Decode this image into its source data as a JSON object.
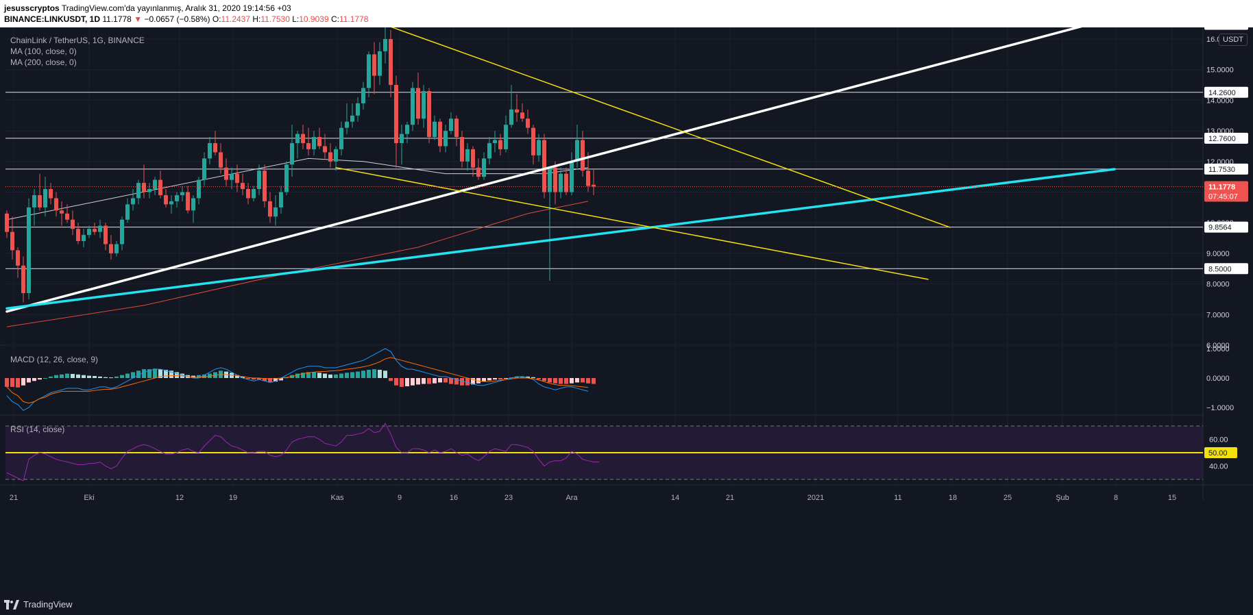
{
  "header": {
    "user": "jesusscryptos",
    "published": "TradingView.com'da yayınlanmış, Aralık 31, 2020 19:14:56 +03",
    "symbol": "BINANCE:LINKUSDT, 1D",
    "last": "11.1778",
    "change": "−0.0657 (−0.58%)",
    "o_label": "O:",
    "o": "11.2437",
    "h_label": "H:",
    "h": "11.7530",
    "l_label": "L:",
    "l": "10.9039",
    "c_label": "C:",
    "c": "11.1778"
  },
  "legends": {
    "title": "ChainLink / TetherUS, 1G, BINANCE",
    "ma100": "MA (100, close, 0)",
    "ma200": "MA (200, close, 0)",
    "macd": "MACD (12, 26, close, 9)",
    "rsi": "RSI (14, close)"
  },
  "price_scale": {
    "currency": "USDT",
    "ticks": [
      "6.0000",
      "7.0000",
      "8.0000",
      "9.0000",
      "10.0000",
      "11.0000",
      "12.0000",
      "13.0000",
      "14.0000",
      "15.0000",
      "16.0000",
      "17.0000"
    ],
    "level_tags": [
      "16.4800",
      "14.2600",
      "12.7600",
      "11.7530",
      "9.8564",
      "8.5000"
    ],
    "last_price_tag": "11.1778",
    "countdown_tag": "07:45:07"
  },
  "macd_scale": {
    "ticks": [
      "1.0000",
      "0.0000",
      "−1.0000"
    ]
  },
  "rsi_scale": {
    "ticks": [
      "60.00",
      "40.00"
    ],
    "level_tag": "50.00"
  },
  "time_axis": [
    "21",
    "Eki",
    "12",
    "19",
    "Kas",
    "9",
    "16",
    "23",
    "Ara",
    "14",
    "21",
    "2021",
    "11",
    "18",
    "25",
    "Şub",
    "8",
    "15"
  ],
  "brand": "TradingView",
  "colors": {
    "up": "#26a69a",
    "down": "#ef5350",
    "white_line": "#ffffff",
    "cyan_line": "#22e3f0",
    "yellow_line": "#f5e10a",
    "ma100": "#d1d4dc",
    "ma200": "#e04a3a",
    "macd_line": "#2196f3",
    "signal_line": "#ff6d00",
    "rsi_line": "#9c27b0"
  },
  "chart_data": {
    "type": "candlestick",
    "symbol": "LINKUSDT",
    "timeframe": "1D",
    "y_range": [
      5.6,
      17.5
    ],
    "candles": [
      [
        10.3,
        10.4,
        9.5,
        9.7
      ],
      [
        9.7,
        10.2,
        8.8,
        9.1
      ],
      [
        9.1,
        9.2,
        8.2,
        8.6
      ],
      [
        8.6,
        8.9,
        7.4,
        7.7
      ],
      [
        7.7,
        10.8,
        7.5,
        10.5
      ],
      [
        10.5,
        11.1,
        9.9,
        10.9
      ],
      [
        10.9,
        11.6,
        10.4,
        10.5
      ],
      [
        10.5,
        11.5,
        10.2,
        11.1
      ],
      [
        11.1,
        11.3,
        10.6,
        10.8
      ],
      [
        10.8,
        11.0,
        10.2,
        10.4
      ],
      [
        10.4,
        10.7,
        9.9,
        10.3
      ],
      [
        10.3,
        10.6,
        10.0,
        10.1
      ],
      [
        10.1,
        10.4,
        9.6,
        9.8
      ],
      [
        9.8,
        10.0,
        9.3,
        9.4
      ],
      [
        9.4,
        9.8,
        9.2,
        9.6
      ],
      [
        9.6,
        9.9,
        9.5,
        9.8
      ],
      [
        9.8,
        10.0,
        9.6,
        9.7
      ],
      [
        9.7,
        10.1,
        9.5,
        9.9
      ],
      [
        9.9,
        10.0,
        9.1,
        9.3
      ],
      [
        9.3,
        9.6,
        8.8,
        9.0
      ],
      [
        9.0,
        9.4,
        8.9,
        9.3
      ],
      [
        9.3,
        10.2,
        9.1,
        10.1
      ],
      [
        10.1,
        10.8,
        10.0,
        10.6
      ],
      [
        10.6,
        11.1,
        10.4,
        10.8
      ],
      [
        10.8,
        11.4,
        10.6,
        11.3
      ],
      [
        11.3,
        11.9,
        10.8,
        11.0
      ],
      [
        11.0,
        11.3,
        10.8,
        11.1
      ],
      [
        11.1,
        11.5,
        10.9,
        11.4
      ],
      [
        11.4,
        11.7,
        10.8,
        10.9
      ],
      [
        10.9,
        11.1,
        10.5,
        10.6
      ],
      [
        10.6,
        10.9,
        10.3,
        10.7
      ],
      [
        10.7,
        11.0,
        10.5,
        10.9
      ],
      [
        10.9,
        11.2,
        10.7,
        11.0
      ],
      [
        11.0,
        11.2,
        10.3,
        10.4
      ],
      [
        10.4,
        10.9,
        10.0,
        10.8
      ],
      [
        10.8,
        11.5,
        10.6,
        11.4
      ],
      [
        11.4,
        12.3,
        11.2,
        12.1
      ],
      [
        12.1,
        12.8,
        11.9,
        12.6
      ],
      [
        12.6,
        13.0,
        12.2,
        12.3
      ],
      [
        12.3,
        12.6,
        11.6,
        11.8
      ],
      [
        11.8,
        12.1,
        11.2,
        11.4
      ],
      [
        11.4,
        11.8,
        11.1,
        11.6
      ],
      [
        11.6,
        11.9,
        11.0,
        11.3
      ],
      [
        11.3,
        11.6,
        10.9,
        11.1
      ],
      [
        11.1,
        11.3,
        10.6,
        10.8
      ],
      [
        10.8,
        11.2,
        10.7,
        11.1
      ],
      [
        11.1,
        11.9,
        10.9,
        11.7
      ],
      [
        11.7,
        11.9,
        10.5,
        10.7
      ],
      [
        10.7,
        11.0,
        10.0,
        10.2
      ],
      [
        10.2,
        10.9,
        9.9,
        10.5
      ],
      [
        10.5,
        11.2,
        10.3,
        11.0
      ],
      [
        11.0,
        12.0,
        10.9,
        11.9
      ],
      [
        11.9,
        13.2,
        11.5,
        12.6
      ],
      [
        12.6,
        13.0,
        12.1,
        12.9
      ],
      [
        12.9,
        13.2,
        12.4,
        12.6
      ],
      [
        12.6,
        13.1,
        12.2,
        12.4
      ],
      [
        12.4,
        13.0,
        12.2,
        12.8
      ],
      [
        12.8,
        13.1,
        12.4,
        12.5
      ],
      [
        12.5,
        12.9,
        12.1,
        12.3
      ],
      [
        12.3,
        12.6,
        11.8,
        12.0
      ],
      [
        12.0,
        12.5,
        11.7,
        12.4
      ],
      [
        12.4,
        13.3,
        12.2,
        13.1
      ],
      [
        13.1,
        13.9,
        12.9,
        13.3
      ],
      [
        13.3,
        13.9,
        13.1,
        13.5
      ],
      [
        13.5,
        14.1,
        13.3,
        13.9
      ],
      [
        13.9,
        14.6,
        13.7,
        14.4
      ],
      [
        14.4,
        15.6,
        14.1,
        15.5
      ],
      [
        15.5,
        15.9,
        14.2,
        14.8
      ],
      [
        14.8,
        15.9,
        14.5,
        15.6
      ],
      [
        15.6,
        16.4,
        15.2,
        16.0
      ],
      [
        16.0,
        16.3,
        14.1,
        14.5
      ],
      [
        14.5,
        14.8,
        11.8,
        12.6
      ],
      [
        12.6,
        13.2,
        11.9,
        12.9
      ],
      [
        12.9,
        13.3,
        12.6,
        13.2
      ],
      [
        13.2,
        14.6,
        13.0,
        14.4
      ],
      [
        14.4,
        14.9,
        13.2,
        13.4
      ],
      [
        13.4,
        14.5,
        13.1,
        14.3
      ],
      [
        14.3,
        14.4,
        12.6,
        12.8
      ],
      [
        12.8,
        13.5,
        12.7,
        13.3
      ],
      [
        13.3,
        13.4,
        12.3,
        12.5
      ],
      [
        12.5,
        13.2,
        12.3,
        13.0
      ],
      [
        13.0,
        13.6,
        12.9,
        13.4
      ],
      [
        13.4,
        13.5,
        12.5,
        12.8
      ],
      [
        12.8,
        13.0,
        11.8,
        12.0
      ],
      [
        12.0,
        12.6,
        11.7,
        12.4
      ],
      [
        12.4,
        12.5,
        11.5,
        11.8
      ],
      [
        11.8,
        12.1,
        11.4,
        11.5
      ],
      [
        11.5,
        12.3,
        11.4,
        12.1
      ],
      [
        12.1,
        12.8,
        11.9,
        12.6
      ],
      [
        12.6,
        13.0,
        12.3,
        12.7
      ],
      [
        12.7,
        12.9,
        12.2,
        12.4
      ],
      [
        12.4,
        13.5,
        12.3,
        13.2
      ],
      [
        13.2,
        14.5,
        13.1,
        13.7
      ],
      [
        13.7,
        14.2,
        13.3,
        13.6
      ],
      [
        13.6,
        13.9,
        13.3,
        13.4
      ],
      [
        13.4,
        13.7,
        12.9,
        13.1
      ],
      [
        13.1,
        13.2,
        11.9,
        12.2
      ],
      [
        12.2,
        12.9,
        12.0,
        12.7
      ],
      [
        12.7,
        12.9,
        10.8,
        11.0
      ],
      [
        11.0,
        11.8,
        8.1,
        11.8
      ],
      [
        11.8,
        12.0,
        10.6,
        11.0
      ],
      [
        11.0,
        11.8,
        10.8,
        11.6
      ],
      [
        11.6,
        11.8,
        10.9,
        11.0
      ],
      [
        11.0,
        12.3,
        10.9,
        12.0
      ],
      [
        12.0,
        13.2,
        11.8,
        12.7
      ],
      [
        12.7,
        13.0,
        11.5,
        11.7
      ],
      [
        11.7,
        12.3,
        11.0,
        11.2
      ],
      [
        11.24,
        11.75,
        10.9,
        11.18
      ]
    ],
    "moving_averages": [
      {
        "name": "MA (100, close, 0)",
        "points": [
          [
            0,
            10.1
          ],
          [
            55,
            12.1
          ],
          [
            65,
            12.0
          ],
          [
            80,
            11.6
          ],
          [
            98,
            11.6
          ],
          [
            106,
            11.8
          ]
        ]
      },
      {
        "name": "MA (200, close, 0)",
        "points": [
          [
            0,
            6.6
          ],
          [
            25,
            7.3
          ],
          [
            50,
            8.3
          ],
          [
            75,
            9.2
          ],
          [
            95,
            10.3
          ],
          [
            106,
            10.7
          ]
        ]
      }
    ],
    "horizontal_levels": [
      16.48,
      14.26,
      12.76,
      11.753,
      9.8564,
      8.5
    ],
    "trendlines": {
      "white": [
        [
          0,
          7.1
        ],
        [
          202,
          16.7
        ]
      ],
      "cyan": [
        [
          0,
          7.2
        ],
        [
          202,
          11.75
        ]
      ],
      "yellow_upper": [
        [
          70,
          16.4
        ],
        [
          172,
          9.85
        ]
      ],
      "yellow_lower": [
        [
          60,
          11.8
        ],
        [
          168,
          8.15
        ]
      ]
    },
    "macd": {
      "ylim": [
        -1.5,
        1.2
      ],
      "histogram": [
        -0.3,
        -0.3,
        -0.32,
        -0.25,
        -0.15,
        -0.1,
        -0.05,
        0.0,
        0.05,
        0.1,
        0.12,
        0.15,
        0.14,
        0.12,
        0.1,
        0.08,
        0.07,
        0.05,
        0.03,
        0.02,
        0.05,
        0.1,
        0.15,
        0.2,
        0.25,
        0.3,
        0.3,
        0.32,
        0.3,
        0.28,
        0.25,
        0.2,
        0.15,
        0.1,
        0.08,
        0.1,
        0.12,
        0.15,
        0.2,
        0.25,
        0.22,
        0.18,
        0.1,
        0.05,
        -0.02,
        -0.05,
        -0.05,
        -0.1,
        -0.15,
        -0.12,
        -0.08,
        0.02,
        0.1,
        0.15,
        0.18,
        0.2,
        0.2,
        0.18,
        0.15,
        0.12,
        0.12,
        0.15,
        0.18,
        0.2,
        0.22,
        0.25,
        0.28,
        0.3,
        0.28,
        0.25,
        -0.1,
        -0.25,
        -0.3,
        -0.28,
        -0.25,
        -0.22,
        -0.2,
        -0.2,
        -0.18,
        -0.15,
        -0.15,
        -0.2,
        -0.22,
        -0.25,
        -0.25,
        -0.22,
        -0.18,
        -0.12,
        -0.08,
        -0.05,
        -0.05,
        -0.02,
        0.02,
        0.05,
        0.06,
        0.05,
        0.03,
        -0.05,
        -0.1,
        -0.15,
        -0.18,
        -0.2,
        -0.2,
        -0.18,
        -0.15,
        -0.15,
        -0.18,
        -0.2
      ],
      "macd_line": [
        -0.6,
        -0.8,
        -0.9,
        -1.1,
        -1.0,
        -0.8,
        -0.7,
        -0.6,
        -0.5,
        -0.45,
        -0.4,
        -0.35,
        -0.35,
        -0.35,
        -0.4,
        -0.4,
        -0.35,
        -0.3,
        -0.3,
        -0.35,
        -0.3,
        -0.2,
        -0.1,
        0.0,
        0.1,
        0.2,
        0.25,
        0.3,
        0.3,
        0.25,
        0.2,
        0.15,
        0.1,
        0.05,
        0.0,
        0.0,
        0.1,
        0.2,
        0.3,
        0.35,
        0.3,
        0.2,
        0.1,
        0.0,
        -0.05,
        -0.1,
        -0.05,
        -0.1,
        -0.15,
        -0.1,
        0.0,
        0.1,
        0.2,
        0.3,
        0.35,
        0.4,
        0.4,
        0.4,
        0.35,
        0.35,
        0.35,
        0.4,
        0.45,
        0.5,
        0.55,
        0.6,
        0.7,
        0.8,
        0.9,
        1.0,
        0.9,
        0.6,
        0.4,
        0.3,
        0.3,
        0.25,
        0.2,
        0.15,
        0.1,
        0.05,
        0.05,
        0.0,
        -0.05,
        -0.1,
        -0.15,
        -0.2,
        -0.25,
        -0.25,
        -0.2,
        -0.15,
        -0.1,
        -0.05,
        0.0,
        0.05,
        0.05,
        0.0,
        -0.05,
        -0.2,
        -0.3,
        -0.35,
        -0.4,
        -0.35,
        -0.3,
        -0.3,
        -0.35,
        -0.4,
        -0.45
      ],
      "signal_line": [
        -0.3,
        -0.5,
        -0.6,
        -0.8,
        -0.85,
        -0.8,
        -0.7,
        -0.65,
        -0.55,
        -0.5,
        -0.45,
        -0.45,
        -0.45,
        -0.45,
        -0.45,
        -0.45,
        -0.42,
        -0.4,
        -0.38,
        -0.38,
        -0.35,
        -0.3,
        -0.25,
        -0.2,
        -0.15,
        -0.1,
        -0.05,
        0.0,
        0.05,
        0.07,
        0.08,
        0.08,
        0.07,
        0.05,
        0.03,
        0.02,
        0.04,
        0.06,
        0.1,
        0.12,
        0.12,
        0.1,
        0.08,
        0.05,
        0.02,
        0.0,
        0.0,
        -0.02,
        -0.03,
        -0.02,
        0.0,
        0.02,
        0.05,
        0.1,
        0.15,
        0.18,
        0.2,
        0.22,
        0.22,
        0.24,
        0.25,
        0.27,
        0.3,
        0.32,
        0.35,
        0.38,
        0.42,
        0.48,
        0.55,
        0.65,
        0.7,
        0.65,
        0.6,
        0.55,
        0.5,
        0.45,
        0.4,
        0.35,
        0.3,
        0.25,
        0.2,
        0.15,
        0.1,
        0.05,
        0.0,
        -0.05,
        -0.1,
        -0.12,
        -0.12,
        -0.1,
        -0.08,
        -0.05,
        -0.03,
        0.0,
        0.0,
        0.0,
        -0.02,
        -0.07,
        -0.12,
        -0.18,
        -0.22,
        -0.25,
        -0.25,
        -0.26,
        -0.28,
        -0.3,
        -0.32
      ]
    },
    "rsi": {
      "ylim": [
        20,
        80
      ],
      "bands": [
        70,
        30
      ],
      "midline": 50,
      "values": [
        35,
        33,
        31,
        29,
        45,
        48,
        50,
        49,
        47,
        45,
        44,
        43,
        42,
        41,
        41,
        42,
        42,
        43,
        40,
        38,
        40,
        46,
        51,
        53,
        55,
        56,
        55,
        53,
        51,
        49,
        49,
        50,
        52,
        53,
        51,
        50,
        55,
        59,
        63,
        62,
        58,
        55,
        54,
        52,
        50,
        50,
        51,
        51,
        48,
        47,
        48,
        52,
        58,
        60,
        61,
        62,
        62,
        60,
        57,
        56,
        55,
        58,
        63,
        63,
        64,
        65,
        68,
        65,
        66,
        72,
        64,
        54,
        50,
        50,
        53,
        53,
        52,
        50,
        52,
        50,
        51,
        53,
        50,
        48,
        49,
        46,
        44,
        47,
        51,
        53,
        52,
        51,
        56,
        56,
        55,
        54,
        51,
        45,
        40,
        43,
        44,
        44,
        46,
        51,
        49,
        45,
        44,
        43,
        43
      ]
    }
  }
}
